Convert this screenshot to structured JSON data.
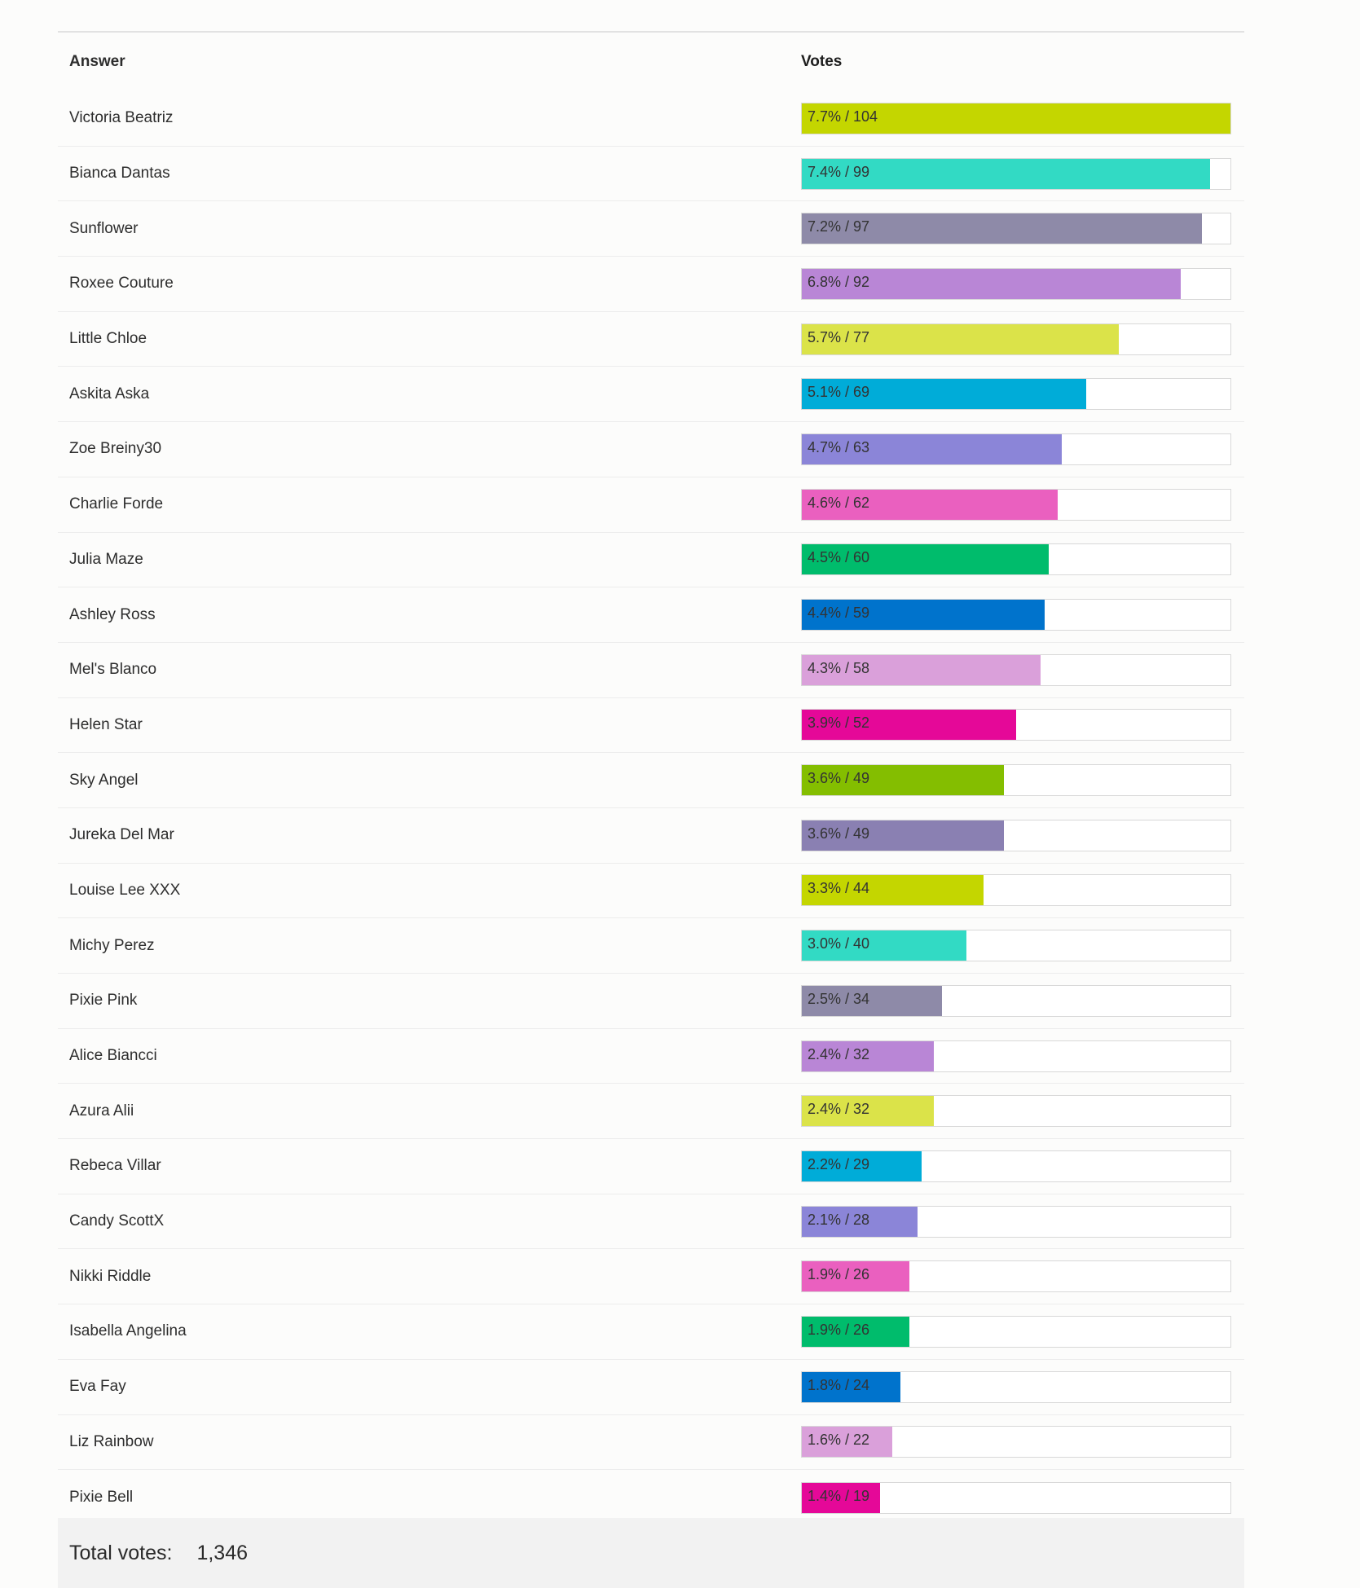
{
  "poll": {
    "header": {
      "answer_label": "Answer",
      "votes_label": "Votes"
    },
    "rows": [
      {
        "answer": "Victoria Beatriz",
        "pct": 7.7,
        "votes": 104,
        "label": "7.7% / 104",
        "color": "#c4d600"
      },
      {
        "answer": "Bianca Dantas",
        "pct": 7.4,
        "votes": 99,
        "label": "7.4% / 99",
        "color": "#32dac4"
      },
      {
        "answer": "Sunflower",
        "pct": 7.2,
        "votes": 97,
        "label": "7.2% / 97",
        "color": "#8e8aa8"
      },
      {
        "answer": "Roxee Couture",
        "pct": 6.8,
        "votes": 92,
        "label": "6.8% / 92",
        "color": "#b986d6"
      },
      {
        "answer": "Little Chloe",
        "pct": 5.7,
        "votes": 77,
        "label": "5.7% / 77",
        "color": "#dbe349"
      },
      {
        "answer": "Askita Aska",
        "pct": 5.1,
        "votes": 69,
        "label": "5.1% / 69",
        "color": "#00acd8"
      },
      {
        "answer": "Zoe Breiny30",
        "pct": 4.7,
        "votes": 63,
        "label": "4.7% / 63",
        "color": "#8b85d8"
      },
      {
        "answer": "Charlie Forde",
        "pct": 4.6,
        "votes": 62,
        "label": "4.6% / 62",
        "color": "#ea60bf"
      },
      {
        "answer": "Julia Maze",
        "pct": 4.5,
        "votes": 60,
        "label": "4.5% / 60",
        "color": "#00bc6c"
      },
      {
        "answer": "Ashley Ross",
        "pct": 4.4,
        "votes": 59,
        "label": "4.4% / 59",
        "color": "#0073cc"
      },
      {
        "answer": "Mel's Blanco",
        "pct": 4.3,
        "votes": 58,
        "label": "4.3% / 58",
        "color": "#daa0da"
      },
      {
        "answer": "Helen Star",
        "pct": 3.9,
        "votes": 52,
        "label": "3.9% / 52",
        "color": "#e50898"
      },
      {
        "answer": "Sky Angel",
        "pct": 3.6,
        "votes": 49,
        "label": "3.6% / 49",
        "color": "#84be00"
      },
      {
        "answer": "Jureka Del Mar",
        "pct": 3.6,
        "votes": 49,
        "label": "3.6% / 49",
        "color": "#8a80b2"
      },
      {
        "answer": "Louise Lee XXX",
        "pct": 3.3,
        "votes": 44,
        "label": "3.3% / 44",
        "color": "#c4d600"
      },
      {
        "answer": "Michy Perez",
        "pct": 3.0,
        "votes": 40,
        "label": "3.0% / 40",
        "color": "#32dac4"
      },
      {
        "answer": "Pixie Pink",
        "pct": 2.5,
        "votes": 34,
        "label": "2.5% / 34",
        "color": "#8e8aa8"
      },
      {
        "answer": "Alice Biancci",
        "pct": 2.4,
        "votes": 32,
        "label": "2.4% / 32",
        "color": "#b986d6"
      },
      {
        "answer": "Azura Alii",
        "pct": 2.4,
        "votes": 32,
        "label": "2.4% / 32",
        "color": "#dbe349"
      },
      {
        "answer": "Rebeca Villar",
        "pct": 2.2,
        "votes": 29,
        "label": "2.2% / 29",
        "color": "#00acd8"
      },
      {
        "answer": "Candy ScottX",
        "pct": 2.1,
        "votes": 28,
        "label": "2.1% / 28",
        "color": "#8b85d8"
      },
      {
        "answer": "Nikki Riddle",
        "pct": 1.9,
        "votes": 26,
        "label": "1.9% / 26",
        "color": "#ea60bf"
      },
      {
        "answer": "Isabella Angelina",
        "pct": 1.9,
        "votes": 26,
        "label": "1.9% / 26",
        "color": "#00bc6c"
      },
      {
        "answer": "Eva Fay",
        "pct": 1.8,
        "votes": 24,
        "label": "1.8% / 24",
        "color": "#0073cc"
      },
      {
        "answer": "Liz Rainbow",
        "pct": 1.6,
        "votes": 22,
        "label": "1.6% / 22",
        "color": "#daa0da"
      },
      {
        "answer": "Pixie Bell",
        "pct": 1.4,
        "votes": 19,
        "label": "1.4% / 19",
        "color": "#e50898"
      }
    ],
    "total": {
      "label": "Total votes:",
      "value": "1,346"
    }
  }
}
